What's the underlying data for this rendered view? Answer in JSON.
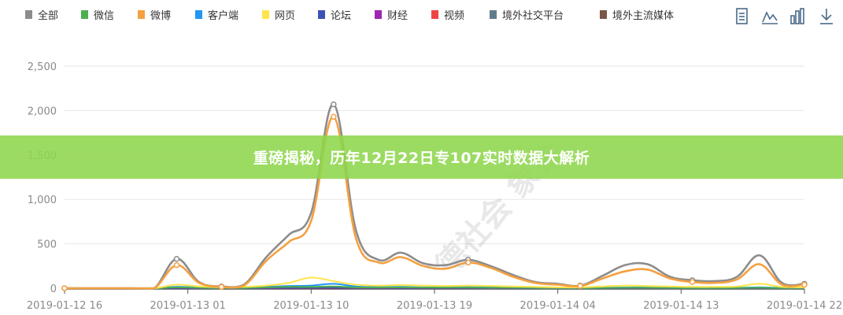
{
  "banner": {
    "title": "重磅揭秘，历年12月22日专107实时数据大解析"
  },
  "watermark": {
    "text": "浙德社会 象台"
  },
  "toolbar": [
    "data-view-icon",
    "line-chart-icon",
    "bar-chart-icon",
    "download-icon"
  ],
  "chart_data": {
    "type": "line",
    "title": "",
    "xlabel": "",
    "ylabel": "",
    "ylim": [
      0,
      2500
    ],
    "yticks": [
      0,
      500,
      1000,
      1500,
      2000,
      2500
    ],
    "ytick_labels": [
      "0",
      "500",
      "1,000",
      "1,500",
      "2,000",
      "2,500"
    ],
    "xtick_labels": [
      "2019-01-12 16",
      "2019-01-13 01",
      "2019-01-13 10",
      "2019-01-13 19",
      "2019-01-14 04",
      "2019-01-14 13",
      "2019-01-14 22"
    ],
    "grid": "horizontal",
    "legend_position": "top-left",
    "series": [
      {
        "name": "全部",
        "color": "#8c8c8c",
        "values": [
          0,
          0,
          0,
          0,
          0,
          330,
          70,
          20,
          40,
          350,
          600,
          850,
          2070,
          650,
          320,
          400,
          280,
          260,
          320,
          250,
          150,
          70,
          50,
          30,
          140,
          260,
          270,
          130,
          90,
          80,
          130,
          370,
          60,
          50
        ]
      },
      {
        "name": "微信",
        "color": "#4caf50",
        "values": [
          0,
          0,
          0,
          0,
          0,
          10,
          5,
          2,
          3,
          10,
          15,
          15,
          20,
          10,
          8,
          10,
          8,
          8,
          8,
          6,
          5,
          3,
          2,
          2,
          3,
          5,
          5,
          3,
          2,
          2,
          3,
          5,
          2,
          2
        ]
      },
      {
        "name": "微博",
        "color": "#f5a040",
        "values": [
          0,
          0,
          0,
          0,
          0,
          260,
          60,
          15,
          30,
          310,
          520,
          760,
          1930,
          560,
          290,
          350,
          250,
          220,
          290,
          230,
          130,
          60,
          40,
          25,
          110,
          190,
          210,
          110,
          70,
          60,
          100,
          270,
          40,
          40
        ]
      },
      {
        "name": "客户端",
        "color": "#2196f3",
        "values": [
          0,
          0,
          0,
          0,
          0,
          15,
          8,
          3,
          5,
          15,
          25,
          30,
          50,
          20,
          12,
          15,
          10,
          10,
          12,
          10,
          6,
          4,
          3,
          2,
          5,
          8,
          8,
          5,
          4,
          4,
          5,
          10,
          3,
          3
        ]
      },
      {
        "name": "网页",
        "color": "#ffe44d",
        "values": [
          0,
          0,
          0,
          0,
          0,
          40,
          20,
          10,
          15,
          30,
          60,
          120,
          80,
          40,
          30,
          35,
          30,
          25,
          30,
          25,
          20,
          15,
          10,
          10,
          20,
          30,
          25,
          20,
          15,
          15,
          20,
          50,
          15,
          10
        ]
      },
      {
        "name": "论坛",
        "color": "#3f51b5",
        "values": [
          0,
          0,
          0,
          0,
          0,
          3,
          2,
          1,
          1,
          3,
          5,
          6,
          8,
          4,
          3,
          3,
          2,
          2,
          3,
          2,
          2,
          1,
          1,
          1,
          1,
          2,
          2,
          1,
          1,
          1,
          1,
          2,
          1,
          1
        ]
      },
      {
        "name": "财经",
        "color": "#9c27b0",
        "values": [
          0,
          0,
          0,
          0,
          0,
          2,
          1,
          1,
          1,
          2,
          3,
          4,
          5,
          3,
          2,
          2,
          2,
          2,
          2,
          2,
          1,
          1,
          1,
          1,
          1,
          2,
          2,
          1,
          1,
          1,
          1,
          2,
          1,
          1
        ]
      },
      {
        "name": "视频",
        "color": "#ef4444",
        "values": [
          0,
          0,
          0,
          0,
          0,
          2,
          1,
          1,
          1,
          2,
          3,
          3,
          4,
          2,
          2,
          2,
          1,
          1,
          2,
          1,
          1,
          1,
          1,
          1,
          1,
          1,
          1,
          1,
          1,
          1,
          1,
          2,
          1,
          1
        ]
      },
      {
        "name": "境外社交平台",
        "color": "#607d8b",
        "values": [
          0,
          0,
          0,
          0,
          0,
          5,
          3,
          1,
          2,
          5,
          8,
          10,
          12,
          6,
          4,
          5,
          4,
          4,
          4,
          3,
          2,
          2,
          1,
          1,
          2,
          3,
          3,
          2,
          2,
          2,
          2,
          4,
          1,
          1
        ]
      },
      {
        "name": "境外主流媒体",
        "color": "#795548",
        "values": [
          0,
          0,
          0,
          0,
          0,
          2,
          1,
          0,
          1,
          2,
          3,
          3,
          4,
          2,
          1,
          2,
          1,
          1,
          1,
          1,
          1,
          0,
          0,
          0,
          1,
          1,
          1,
          1,
          0,
          0,
          1,
          1,
          0,
          0
        ]
      }
    ]
  }
}
